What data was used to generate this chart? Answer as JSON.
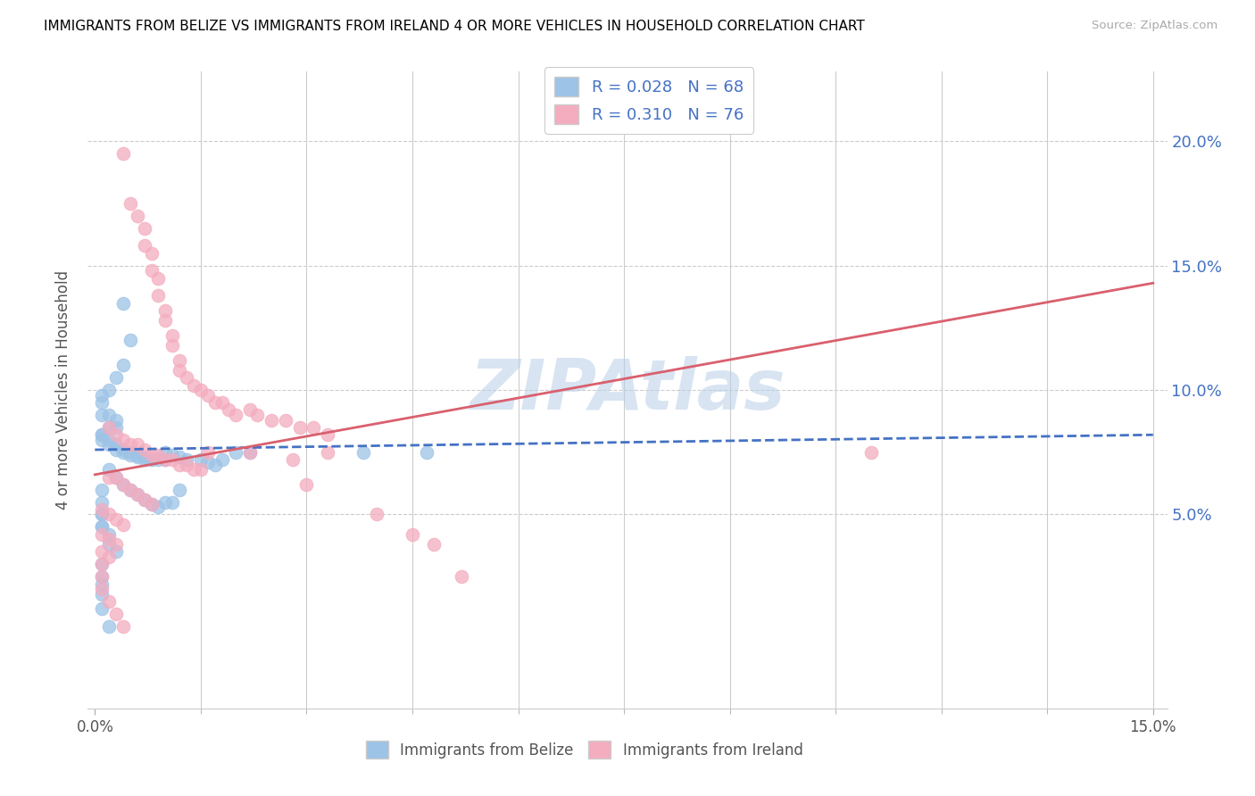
{
  "title": "IMMIGRANTS FROM BELIZE VS IMMIGRANTS FROM IRELAND 4 OR MORE VEHICLES IN HOUSEHOLD CORRELATION CHART",
  "source": "Source: ZipAtlas.com",
  "ylabel": "4 or more Vehicles in Household",
  "ytick_labels": [
    "5.0%",
    "10.0%",
    "15.0%",
    "20.0%"
  ],
  "ytick_values": [
    0.05,
    0.1,
    0.15,
    0.2
  ],
  "xlim": [
    -0.001,
    0.152
  ],
  "ylim": [
    -0.028,
    0.228
  ],
  "legend_label1": "R = 0.028   N = 68",
  "legend_label2": "R = 0.310   N = 76",
  "legend_footer1": "Immigrants from Belize",
  "legend_footer2": "Immigrants from Ireland",
  "belize_color": "#9dc3e6",
  "ireland_color": "#f4acbf",
  "belize_line_color": "#4472c4",
  "ireland_line_color": "#d9606e",
  "watermark": "ZIPAtlas",
  "belize_line_x0": 0.0,
  "belize_line_y0": 0.076,
  "belize_line_x1": 0.15,
  "belize_line_y1": 0.082,
  "ireland_line_x0": 0.0,
  "ireland_line_y0": 0.066,
  "ireland_line_x1": 0.15,
  "ireland_line_y1": 0.143,
  "belize_scatter_x": [
    0.004,
    0.005,
    0.004,
    0.003,
    0.002,
    0.001,
    0.001,
    0.001,
    0.002,
    0.003,
    0.002,
    0.003,
    0.001,
    0.001,
    0.001,
    0.002,
    0.002,
    0.003,
    0.003,
    0.004,
    0.004,
    0.005,
    0.005,
    0.006,
    0.006,
    0.007,
    0.007,
    0.008,
    0.009,
    0.01,
    0.01,
    0.011,
    0.012,
    0.013,
    0.015,
    0.016,
    0.017,
    0.018,
    0.02,
    0.022,
    0.002,
    0.003,
    0.004,
    0.005,
    0.006,
    0.007,
    0.008,
    0.009,
    0.01,
    0.011,
    0.012,
    0.001,
    0.001,
    0.002,
    0.002,
    0.003,
    0.001,
    0.001,
    0.001,
    0.001,
    0.001,
    0.002,
    0.038,
    0.047,
    0.001,
    0.001,
    0.001,
    0.001
  ],
  "belize_scatter_y": [
    0.135,
    0.12,
    0.11,
    0.105,
    0.1,
    0.098,
    0.095,
    0.09,
    0.09,
    0.088,
    0.085,
    0.085,
    0.082,
    0.082,
    0.08,
    0.08,
    0.078,
    0.078,
    0.076,
    0.076,
    0.075,
    0.075,
    0.074,
    0.074,
    0.073,
    0.073,
    0.072,
    0.072,
    0.072,
    0.072,
    0.075,
    0.074,
    0.073,
    0.072,
    0.072,
    0.071,
    0.07,
    0.072,
    0.075,
    0.075,
    0.068,
    0.065,
    0.062,
    0.06,
    0.058,
    0.056,
    0.054,
    0.053,
    0.055,
    0.055,
    0.06,
    0.05,
    0.045,
    0.042,
    0.038,
    0.035,
    0.03,
    0.025,
    0.022,
    0.018,
    0.012,
    0.005,
    0.075,
    0.075,
    0.06,
    0.055,
    0.05,
    0.045
  ],
  "ireland_scatter_x": [
    0.004,
    0.005,
    0.006,
    0.007,
    0.007,
    0.008,
    0.008,
    0.009,
    0.009,
    0.01,
    0.01,
    0.011,
    0.011,
    0.012,
    0.012,
    0.013,
    0.014,
    0.015,
    0.016,
    0.017,
    0.018,
    0.019,
    0.02,
    0.022,
    0.023,
    0.025,
    0.027,
    0.029,
    0.031,
    0.033,
    0.002,
    0.003,
    0.004,
    0.005,
    0.006,
    0.007,
    0.008,
    0.009,
    0.01,
    0.011,
    0.012,
    0.013,
    0.014,
    0.015,
    0.016,
    0.002,
    0.003,
    0.004,
    0.005,
    0.006,
    0.007,
    0.008,
    0.001,
    0.002,
    0.003,
    0.004,
    0.001,
    0.002,
    0.003,
    0.001,
    0.002,
    0.001,
    0.001,
    0.001,
    0.002,
    0.003,
    0.004,
    0.033,
    0.11,
    0.022,
    0.028,
    0.03,
    0.04,
    0.045,
    0.048,
    0.052
  ],
  "ireland_scatter_y": [
    0.195,
    0.175,
    0.17,
    0.165,
    0.158,
    0.155,
    0.148,
    0.145,
    0.138,
    0.132,
    0.128,
    0.122,
    0.118,
    0.112,
    0.108,
    0.105,
    0.102,
    0.1,
    0.098,
    0.095,
    0.095,
    0.092,
    0.09,
    0.092,
    0.09,
    0.088,
    0.088,
    0.085,
    0.085,
    0.082,
    0.085,
    0.082,
    0.08,
    0.078,
    0.078,
    0.076,
    0.074,
    0.074,
    0.072,
    0.072,
    0.07,
    0.07,
    0.068,
    0.068,
    0.075,
    0.065,
    0.065,
    0.062,
    0.06,
    0.058,
    0.056,
    0.054,
    0.052,
    0.05,
    0.048,
    0.046,
    0.042,
    0.04,
    0.038,
    0.035,
    0.033,
    0.03,
    0.025,
    0.02,
    0.015,
    0.01,
    0.005,
    0.075,
    0.075,
    0.075,
    0.072,
    0.062,
    0.05,
    0.042,
    0.038,
    0.025
  ]
}
